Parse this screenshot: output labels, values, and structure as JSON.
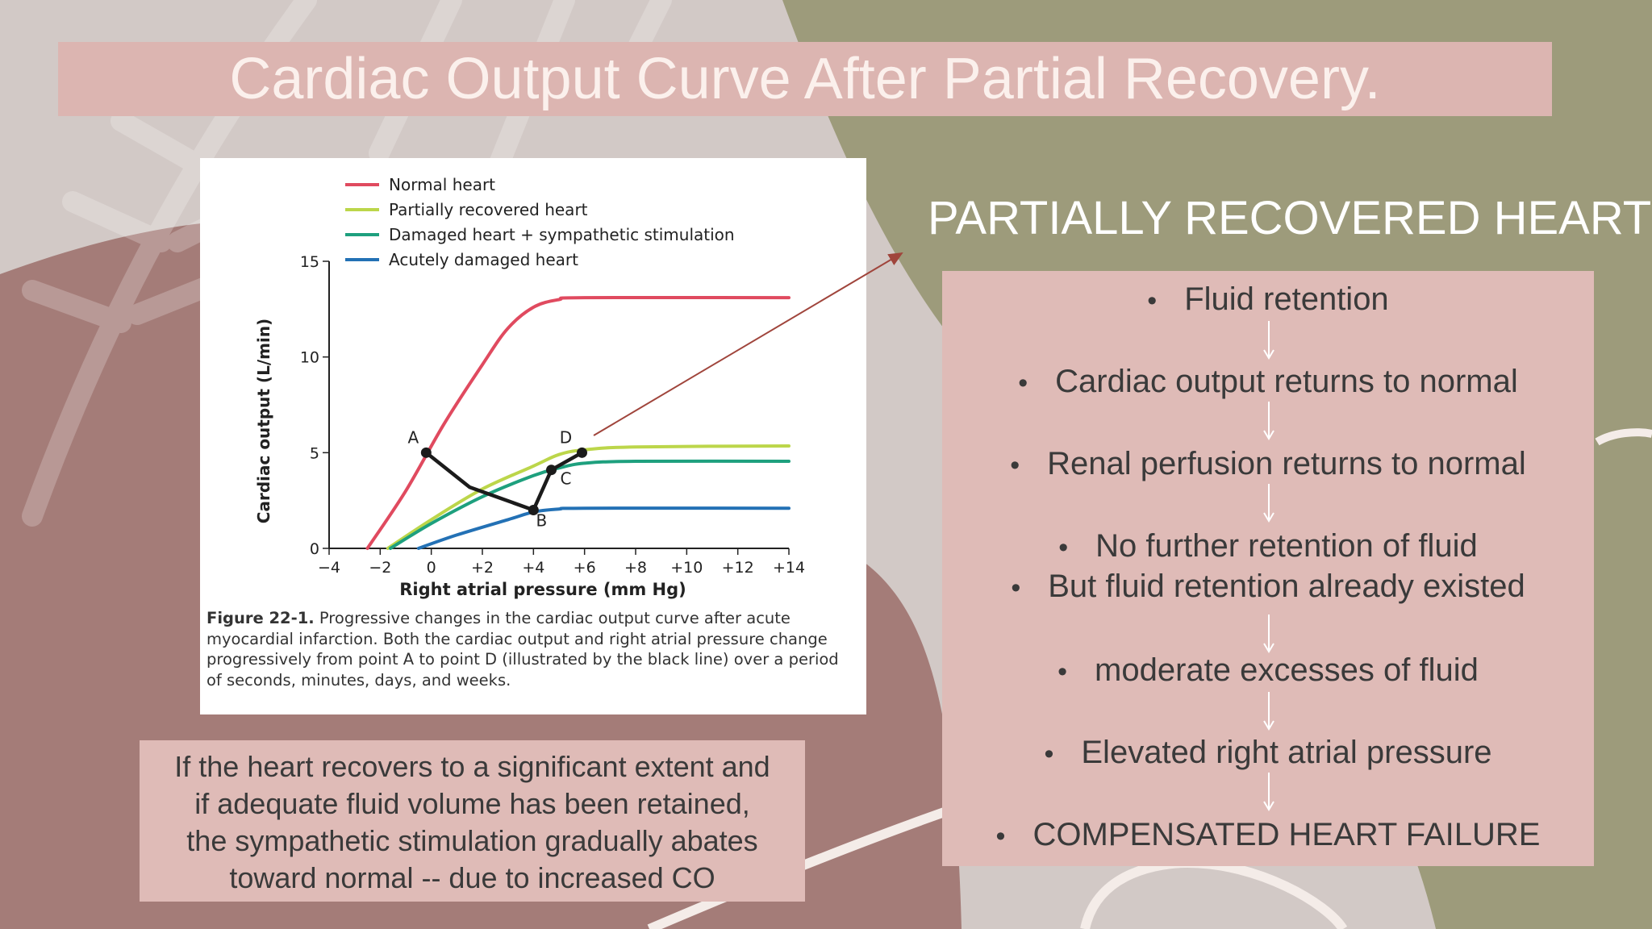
{
  "slide": {
    "title": "Cardiac Output Curve After Partial Recovery.",
    "side_heading": "PARTIALLY RECOVERED HEART",
    "bullets": [
      "Fluid retention",
      "Cardiac output returns to normal",
      "Renal perfusion returns to normal",
      "No further retention of fluid",
      "But fluid retention already existed",
      "moderate excesses of fluid",
      "Elevated right atrial pressure",
      "COMPENSATED HEART FAILURE"
    ],
    "explanation": "If the heart recovers to a significant extent and\nif adequate fluid volume has been retained,\nthe sympathetic  stimulation gradually abates\ntoward normal  -- due to increased CO",
    "colors": {
      "title_bar": "#dcb5b1",
      "box": "#dfbbb7",
      "dark_shape": "#a47c78",
      "olive_shape": "#9d9b7b"
    }
  },
  "figure_caption": {
    "label": "Figure 22-1.",
    "text": "Progressive changes in the cardiac output curve after acute myocardial infarction. Both the cardiac output and right atrial pressure change progressively from point A to point D (illustrated by the black line) over a period of seconds, minutes, days, and weeks."
  },
  "chart_data": {
    "type": "line",
    "xlabel": "Right atrial pressure (mm Hg)",
    "ylabel": "Cardiac output (L/min)",
    "xlim": [
      -4,
      14
    ],
    "ylim": [
      0,
      15
    ],
    "x_ticks": [
      -4,
      -2,
      0,
      2,
      4,
      6,
      8,
      10,
      12,
      14
    ],
    "x_tick_labels": [
      "−4",
      "−2",
      "0",
      "+2",
      "+4",
      "+6",
      "+8",
      "+10",
      "+12",
      "+14"
    ],
    "y_ticks": [
      0,
      5,
      10,
      15
    ],
    "y_tick_labels": [
      "0",
      "5",
      "10",
      "15"
    ],
    "legend_position": "top-left",
    "series": [
      {
        "name": "Normal heart",
        "color": "#e04a5f",
        "points": [
          [
            -2.5,
            0
          ],
          [
            -1,
            3
          ],
          [
            0.5,
            6.5
          ],
          [
            2,
            9.6
          ],
          [
            3,
            11.5
          ],
          [
            4,
            12.6
          ],
          [
            5,
            13.0
          ],
          [
            6,
            13.1
          ],
          [
            14,
            13.1
          ]
        ]
      },
      {
        "name": "Partially recovered heart",
        "color": "#bcd64a",
        "points": [
          [
            -1.7,
            0
          ],
          [
            0,
            1.5
          ],
          [
            2,
            3.1
          ],
          [
            4,
            4.3
          ],
          [
            5,
            4.9
          ],
          [
            6,
            5.15
          ],
          [
            8,
            5.3
          ],
          [
            14,
            5.35
          ]
        ]
      },
      {
        "name": "Damaged heart + sympathetic stimulation",
        "color": "#1ea07e",
        "points": [
          [
            -1.6,
            0
          ],
          [
            0,
            1.3
          ],
          [
            2,
            2.7
          ],
          [
            4,
            3.8
          ],
          [
            5,
            4.2
          ],
          [
            6,
            4.45
          ],
          [
            8,
            4.55
          ],
          [
            14,
            4.55
          ]
        ]
      },
      {
        "name": "Acutely damaged heart",
        "color": "#2371b5",
        "points": [
          [
            -0.5,
            0
          ],
          [
            1,
            0.7
          ],
          [
            3,
            1.5
          ],
          [
            4,
            1.9
          ],
          [
            5,
            2.05
          ],
          [
            6,
            2.1
          ],
          [
            14,
            2.1
          ]
        ]
      }
    ],
    "path": {
      "name": "black line",
      "color": "#1b1b1b",
      "points": [
        [
          -0.2,
          5.0
        ],
        [
          1.5,
          3.2
        ],
        [
          4,
          2.0
        ],
        [
          4.7,
          4.1
        ],
        [
          5.9,
          5.0
        ]
      ]
    },
    "point_labels": [
      {
        "label": "A",
        "x": -0.2,
        "y": 5.0,
        "dx": -16,
        "dy": -12
      },
      {
        "label": "B",
        "x": 4,
        "y": 2.0,
        "dx": 10,
        "dy": 20
      },
      {
        "label": "C",
        "x": 4.7,
        "y": 4.1,
        "dx": 18,
        "dy": 18
      },
      {
        "label": "D",
        "x": 5.9,
        "y": 5.0,
        "dx": -20,
        "dy": -12
      }
    ]
  }
}
